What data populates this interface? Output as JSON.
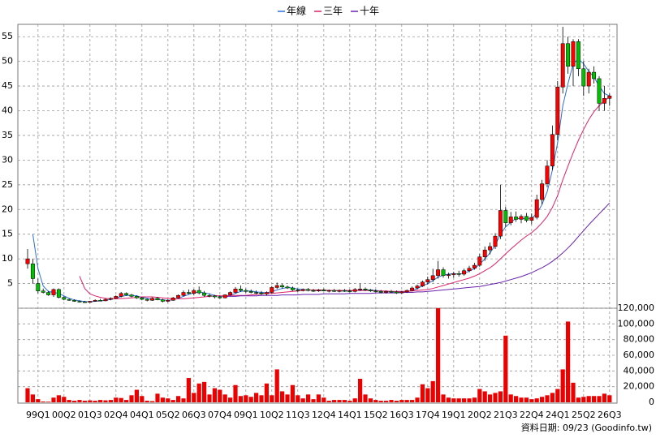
{
  "chart_data": {
    "type": "candlestick",
    "legend_position": "top",
    "grid": true,
    "up_color": "#ff0000",
    "down_color": "#00c000",
    "categories": [
      null,
      null,
      "99Q1",
      null,
      null,
      null,
      null,
      "00Q2",
      null,
      null,
      null,
      null,
      "01Q3",
      null,
      null,
      null,
      null,
      "02Q4",
      null,
      null,
      null,
      null,
      "04Q1",
      null,
      null,
      null,
      null,
      "05Q2",
      null,
      null,
      null,
      null,
      "06Q3",
      null,
      null,
      null,
      null,
      "07Q4",
      null,
      null,
      null,
      null,
      "09Q1",
      null,
      null,
      null,
      null,
      "10Q2",
      null,
      null,
      null,
      null,
      "11Q3",
      null,
      null,
      null,
      null,
      "12Q4",
      null,
      null,
      null,
      null,
      "14Q1",
      null,
      null,
      null,
      null,
      "15Q2",
      null,
      null,
      null,
      null,
      "16Q3",
      null,
      null,
      null,
      null,
      "17Q4",
      null,
      null,
      null,
      null,
      "19Q1",
      null,
      null,
      null,
      null,
      "20Q2",
      null,
      null,
      null,
      null,
      "21Q3",
      null,
      null,
      null,
      null,
      "22Q4",
      null,
      null,
      null,
      null,
      "24Q1",
      null,
      null,
      null,
      null,
      "25Q2",
      null,
      null,
      null,
      null,
      "26Q3"
    ],
    "candles": [
      [
        9,
        12,
        8,
        10
      ],
      [
        9,
        10,
        5,
        6
      ],
      [
        5,
        6,
        3,
        3.5
      ],
      [
        3.5,
        4,
        3,
        3.2
      ],
      [
        3.2,
        3.5,
        2.5,
        2.7
      ],
      [
        2.7,
        4,
        2.3,
        3.8
      ],
      [
        3.8,
        4,
        2,
        2.2
      ],
      [
        2.2,
        2.5,
        1.6,
        1.8
      ],
      [
        1.8,
        2,
        1.5,
        1.6
      ],
      [
        1.6,
        1.8,
        1.3,
        1.4
      ],
      [
        1.4,
        1.6,
        1.2,
        1.3
      ],
      [
        1.3,
        1.5,
        1.1,
        1.2
      ],
      [
        1.2,
        1.5,
        1.1,
        1.4
      ],
      [
        1.4,
        1.8,
        1.3,
        1.6
      ],
      [
        1.6,
        1.9,
        1.4,
        1.5
      ],
      [
        1.5,
        2.0,
        1.4,
        1.8
      ],
      [
        1.8,
        2.2,
        1.6,
        2.0
      ],
      [
        2.0,
        2.6,
        1.9,
        2.4
      ],
      [
        2.4,
        3.3,
        2.2,
        3.0
      ],
      [
        3.0,
        3.2,
        2.5,
        2.7
      ],
      [
        2.7,
        2.9,
        2.2,
        2.4
      ],
      [
        2.4,
        2.6,
        1.9,
        2.1
      ],
      [
        2.1,
        2.3,
        1.6,
        1.8
      ],
      [
        1.8,
        2.0,
        1.4,
        1.6
      ],
      [
        1.6,
        2.2,
        1.5,
        2.0
      ],
      [
        2.0,
        2.3,
        1.6,
        1.7
      ],
      [
        1.7,
        1.9,
        1.2,
        1.4
      ],
      [
        1.4,
        1.8,
        1.2,
        1.6
      ],
      [
        1.6,
        2.3,
        1.5,
        2.1
      ],
      [
        2.1,
        2.8,
        2.0,
        2.6
      ],
      [
        2.6,
        3.6,
        2.4,
        3.2
      ],
      [
        3.2,
        3.8,
        2.8,
        3.0
      ],
      [
        3.0,
        3.9,
        2.6,
        3.6
      ],
      [
        3.6,
        4.4,
        2.8,
        3.1
      ],
      [
        3.1,
        3.5,
        2.3,
        2.6
      ],
      [
        2.6,
        3.0,
        2.2,
        2.5
      ],
      [
        2.5,
        2.7,
        2.0,
        2.3
      ],
      [
        2.3,
        2.6,
        1.9,
        2.1
      ],
      [
        2.1,
        2.8,
        2.0,
        2.7
      ],
      [
        2.7,
        3.4,
        2.5,
        3.2
      ],
      [
        3.2,
        4.3,
        3.0,
        3.9
      ],
      [
        3.9,
        4.6,
        3.3,
        3.6
      ],
      [
        3.6,
        4.0,
        3.1,
        3.4
      ],
      [
        3.4,
        3.8,
        3.0,
        3.2
      ],
      [
        3.2,
        3.6,
        2.8,
        3.1
      ],
      [
        3.1,
        3.5,
        2.7,
        2.9
      ],
      [
        2.9,
        3.4,
        2.6,
        3.2
      ],
      [
        3.2,
        4.5,
        3.0,
        4.2
      ],
      [
        4.2,
        5.2,
        3.9,
        4.6
      ],
      [
        4.6,
        4.9,
        4.0,
        4.3
      ],
      [
        4.3,
        4.6,
        3.9,
        4.1
      ],
      [
        4.1,
        4.4,
        3.5,
        3.7
      ],
      [
        3.7,
        4.0,
        3.3,
        3.6
      ],
      [
        3.6,
        4.0,
        3.4,
        3.8
      ],
      [
        3.8,
        4.1,
        3.4,
        3.6
      ],
      [
        3.6,
        3.9,
        3.3,
        3.5
      ],
      [
        3.5,
        3.9,
        3.3,
        3.7
      ],
      [
        3.7,
        4.0,
        3.4,
        3.5
      ],
      [
        3.5,
        3.8,
        3.2,
        3.6
      ],
      [
        3.6,
        3.9,
        3.3,
        3.4
      ],
      [
        3.4,
        3.8,
        3.2,
        3.6
      ],
      [
        3.6,
        3.9,
        3.3,
        3.5
      ],
      [
        3.5,
        3.8,
        3.2,
        3.4
      ],
      [
        3.4,
        4.1,
        3.2,
        3.8
      ],
      [
        3.8,
        5.0,
        3.5,
        3.9
      ],
      [
        3.9,
        4.2,
        3.5,
        3.7
      ],
      [
        3.7,
        3.9,
        3.3,
        3.5
      ],
      [
        3.5,
        3.8,
        3.2,
        3.4
      ],
      [
        3.4,
        3.7,
        3.0,
        3.2
      ],
      [
        3.2,
        3.6,
        3.0,
        3.4
      ],
      [
        3.4,
        3.7,
        3.1,
        3.3
      ],
      [
        3.3,
        3.6,
        2.9,
        3.1
      ],
      [
        3.1,
        3.5,
        2.9,
        3.3
      ],
      [
        3.3,
        3.8,
        3.1,
        3.6
      ],
      [
        3.6,
        4.4,
        3.4,
        4.1
      ],
      [
        4.1,
        4.8,
        3.8,
        4.5
      ],
      [
        4.5,
        5.6,
        4.3,
        5.3
      ],
      [
        5.3,
        6.4,
        4.8,
        5.8
      ],
      [
        5.8,
        8.0,
        5.3,
        6.6
      ],
      [
        6.6,
        9.6,
        6.0,
        7.8
      ],
      [
        7.8,
        8.3,
        6.2,
        6.6
      ],
      [
        6.6,
        7.2,
        6.0,
        6.8
      ],
      [
        6.8,
        7.4,
        6.2,
        7.0
      ],
      [
        7.0,
        7.6,
        6.4,
        6.9
      ],
      [
        6.9,
        8.0,
        6.6,
        7.6
      ],
      [
        7.6,
        8.6,
        7.3,
        8.1
      ],
      [
        8.1,
        9.2,
        7.8,
        8.7
      ],
      [
        8.7,
        11.0,
        8.4,
        10.4
      ],
      [
        10.4,
        12.5,
        9.6,
        11.8
      ],
      [
        11.8,
        13.3,
        10.9,
        12.5
      ],
      [
        12.5,
        15.2,
        12.0,
        14.6
      ],
      [
        14.6,
        25.0,
        14.0,
        19.8
      ],
      [
        19.8,
        20.5,
        16.5,
        17.3
      ],
      [
        17.3,
        19.5,
        16.8,
        18.5
      ],
      [
        18.5,
        19.6,
        17.5,
        18.0
      ],
      [
        18.0,
        19.0,
        17.2,
        18.6
      ],
      [
        18.6,
        19.3,
        17.4,
        17.8
      ],
      [
        17.8,
        19.2,
        17.0,
        18.4
      ],
      [
        18.4,
        23.0,
        18.0,
        22.0
      ],
      [
        22.0,
        26.0,
        21.0,
        25.2
      ],
      [
        25.2,
        30.0,
        24.5,
        28.8
      ],
      [
        28.8,
        37.0,
        28.0,
        35.2
      ],
      [
        35.2,
        46.0,
        34.0,
        44.8
      ],
      [
        44.8,
        57.0,
        43.5,
        53.6
      ],
      [
        53.6,
        55.0,
        47.5,
        49.0
      ],
      [
        49.0,
        54.5,
        45.0,
        54.0
      ],
      [
        54.0,
        54.5,
        47.0,
        48.5
      ],
      [
        48.5,
        50.0,
        43.0,
        45.0
      ],
      [
        45.0,
        48.5,
        43.5,
        47.8
      ],
      [
        47.8,
        49.0,
        45.5,
        46.5
      ],
      [
        46.5,
        47.0,
        40.0,
        41.5
      ],
      [
        41.5,
        45.0,
        40.0,
        42.5
      ],
      [
        42.5,
        43.5,
        41.0,
        43.0
      ]
    ],
    "series": [
      {
        "name": "年線",
        "color": "#2a6fd8",
        "values": [
          null,
          15,
          8,
          4.5,
          3.4,
          3.2,
          3.0,
          2.5,
          2.0,
          1.7,
          1.5,
          1.35,
          1.3,
          1.4,
          1.5,
          1.6,
          1.75,
          2.0,
          2.4,
          2.6,
          2.6,
          2.5,
          2.2,
          2.0,
          1.8,
          1.8,
          1.7,
          1.6,
          1.7,
          2.0,
          2.4,
          2.8,
          3.1,
          3.3,
          3.1,
          2.9,
          2.6,
          2.4,
          2.4,
          2.6,
          3.0,
          3.4,
          3.5,
          3.5,
          3.3,
          3.2,
          3.1,
          3.4,
          3.7,
          4.0,
          4.2,
          4.1,
          3.9,
          3.8,
          3.7,
          3.6,
          3.6,
          3.6,
          3.6,
          3.6,
          3.5,
          3.5,
          3.5,
          3.6,
          3.7,
          3.7,
          3.7,
          3.6,
          3.5,
          3.4,
          3.3,
          3.3,
          3.3,
          3.4,
          3.6,
          4.0,
          4.5,
          5.0,
          5.6,
          6.3,
          6.7,
          6.9,
          7.0,
          6.9,
          7.1,
          7.5,
          8.0,
          8.9,
          10.0,
          11.2,
          12.8,
          15.0,
          16.5,
          17.4,
          18.2,
          18.1,
          18.2,
          18.2,
          19.2,
          21.0,
          23.6,
          28.0,
          33.5,
          41.0,
          45.5,
          49.5,
          50.5,
          49.5,
          48.0,
          46.8,
          45.0,
          43.5,
          43.0
        ]
      },
      {
        "name": "三年",
        "color": "#e0206a",
        "values": [
          null,
          null,
          null,
          null,
          null,
          null,
          null,
          null,
          null,
          null,
          6.5,
          4.0,
          2.9,
          2.5,
          2.2,
          2.0,
          1.9,
          1.9,
          1.95,
          2.0,
          2.1,
          2.2,
          2.3,
          2.3,
          2.3,
          2.2,
          2.1,
          2.0,
          1.9,
          1.9,
          1.9,
          2.0,
          2.1,
          2.2,
          2.3,
          2.4,
          2.5,
          2.5,
          2.5,
          2.6,
          2.6,
          2.6,
          2.6,
          2.7,
          2.8,
          2.9,
          3.0,
          3.0,
          3.1,
          3.2,
          3.3,
          3.4,
          3.5,
          3.6,
          3.7,
          3.7,
          3.7,
          3.7,
          3.6,
          3.6,
          3.6,
          3.6,
          3.6,
          3.6,
          3.6,
          3.6,
          3.6,
          3.5,
          3.5,
          3.5,
          3.4,
          3.4,
          3.4,
          3.4,
          3.5,
          3.6,
          3.7,
          3.8,
          4.0,
          4.3,
          4.6,
          4.9,
          5.2,
          5.5,
          5.8,
          6.1,
          6.5,
          7.0,
          7.6,
          8.2,
          9.0,
          10.0,
          11.0,
          12.0,
          12.9,
          13.8,
          14.6,
          15.3,
          16.2,
          17.3,
          18.6,
          20.4,
          22.8,
          26.0,
          28.8,
          31.5,
          34.0,
          36.2,
          38.2,
          39.8,
          41.0,
          42.0,
          42.8
        ]
      },
      {
        "name": "十年",
        "color": "#6a22b0",
        "values": [
          null,
          null,
          null,
          null,
          null,
          null,
          null,
          null,
          null,
          null,
          null,
          null,
          null,
          null,
          null,
          null,
          null,
          null,
          null,
          null,
          null,
          null,
          null,
          null,
          null,
          null,
          null,
          null,
          null,
          null,
          null,
          null,
          null,
          null,
          null,
          null,
          null,
          null,
          2.4,
          2.4,
          2.4,
          2.5,
          2.5,
          2.5,
          2.5,
          2.6,
          2.6,
          2.6,
          2.6,
          2.7,
          2.7,
          2.7,
          2.7,
          2.8,
          2.8,
          2.8,
          2.8,
          2.9,
          2.9,
          2.9,
          2.9,
          2.9,
          3.0,
          3.0,
          3.0,
          3.0,
          3.0,
          3.1,
          3.1,
          3.1,
          3.1,
          3.1,
          3.2,
          3.2,
          3.2,
          3.3,
          3.3,
          3.4,
          3.5,
          3.6,
          3.7,
          3.8,
          3.9,
          4.0,
          4.1,
          4.2,
          4.3,
          4.4,
          4.6,
          4.8,
          5.0,
          5.2,
          5.5,
          5.8,
          6.1,
          6.4,
          6.8,
          7.2,
          7.7,
          8.2,
          8.8,
          9.5,
          10.3,
          11.2,
          12.2,
          13.3,
          14.5,
          15.7,
          16.9,
          18.0,
          19.1,
          20.2,
          21.3
        ]
      }
    ],
    "ylim": [
      0,
      57.5
    ],
    "yticks": [
      5,
      10,
      15,
      20,
      25,
      30,
      35,
      40,
      45,
      50,
      55
    ],
    "volume": {
      "color": "#ee0000",
      "values": [
        18000,
        10000,
        4000,
        1000,
        800,
        6000,
        9000,
        7000,
        3000,
        2000,
        3000,
        2000,
        2500,
        2000,
        3000,
        2500,
        3000,
        6000,
        5500,
        3000,
        9000,
        16000,
        8000,
        2000,
        1500,
        11000,
        6000,
        5000,
        3000,
        8000,
        5000,
        31000,
        12000,
        24000,
        26000,
        10000,
        18000,
        16000,
        10000,
        6000,
        22000,
        8000,
        9000,
        7000,
        12000,
        9000,
        24000,
        9000,
        42000,
        14000,
        10000,
        22000,
        9000,
        5000,
        10000,
        4000,
        10000,
        6000,
        2000,
        3000,
        3000,
        3000,
        2000,
        5000,
        30000,
        10000,
        5000,
        3000,
        2000,
        2000,
        3000,
        2000,
        3000,
        3000,
        3000,
        6000,
        23000,
        18000,
        27000,
        120000,
        10000,
        6000,
        5000,
        5000,
        5000,
        5000,
        6000,
        17000,
        14000,
        10000,
        12000,
        14000,
        85000,
        10000,
        8000,
        6000,
        6000,
        4000,
        5000,
        7000,
        9000,
        12000,
        17000,
        42000,
        103000,
        25000,
        6000,
        7000,
        8000,
        8000,
        8000,
        11000,
        9000
      ],
      "ylim": [
        0,
        120000
      ],
      "yticks": [
        {
          "value": 0,
          "label": "0"
        },
        {
          "value": 20000,
          "label": "20,000"
        },
        {
          "value": 40000,
          "label": "40,000"
        },
        {
          "value": 60000,
          "label": "60,000"
        },
        {
          "value": 80000,
          "label": "80,000"
        },
        {
          "value": 100000,
          "label": "100,000"
        },
        {
          "value": 120000,
          "label": "120,000"
        }
      ]
    }
  },
  "footer": "資料日期: 09/23 (Goodinfo.tw)"
}
